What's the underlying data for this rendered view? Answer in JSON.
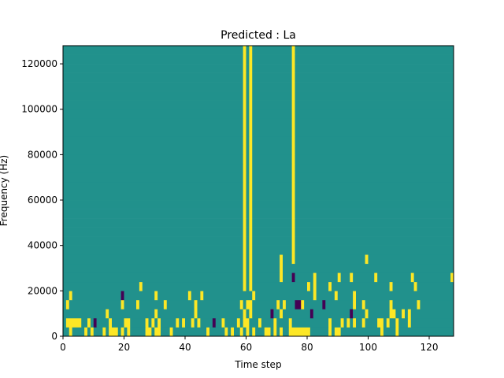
{
  "chart_data": {
    "type": "heatmap",
    "title": "Predicted : La",
    "xlabel": "Time step",
    "ylabel": "Frequency (Hz)",
    "xlim": [
      0,
      128
    ],
    "ylim": [
      0,
      128000
    ],
    "x_ticks": [
      0,
      20,
      40,
      60,
      80,
      100,
      120
    ],
    "y_ticks": [
      0,
      20000,
      40000,
      60000,
      80000,
      100000,
      120000
    ],
    "x_tick_labels": [
      "0",
      "20",
      "40",
      "60",
      "80",
      "100",
      "120"
    ],
    "y_tick_labels": [
      "0",
      "20000",
      "40000",
      "60000",
      "80000",
      "100000",
      "120000"
    ],
    "rows": 32,
    "cols": 128,
    "value_levels": [
      0,
      1,
      2
    ],
    "colormap": {
      "0": "#440154",
      "1": "#21918c",
      "2": "#fde725"
    },
    "grid": false,
    "legend": "none",
    "note": "cell values 0=low (purple), 1=mid (teal), 2=high (yellow); row 0 is the lowest frequency bin",
    "cells": [
      "1121111212111212221212111112212211121111111111121111121211212121112212121122222221111112122111111111111121111211111111111111111111",
      "1222221121011112111122111112121211111212112121111011211112122111211112111121111111111112111212121121111221211211121111111111111111",
      "1111111111111121111111111111112111111111111211111111111111121211111101121111111110111111111111011112111111122112121111111111111111",
      "1211111111111111111211112111111112111111111211111111111111212211111111212111002111111011111111121121111111121111111121111111111111",
      "1121111111111111111011111111112111111111121112111111111111111121111111111111111111211111121111121111111111111111111111111111111111",
      "1111111111111111111111111211111111111111111111111111111111121211111111111111111121211112111111111111111111121111111211111111111111",
      "1111111111111111111111111111111111111111111111111111111111121211111111121110111111211111112111211111112111111111112111111111111211",
      "1111111111111111111111111111111111111111111111111111111111121211111111121111111111111111111111111111111111111111111111111111111111",
      "1111111111111111111111111111111111111111111111111111111111121211111111121112111111111111111111111112111111111111111111111111111121",
      "1111111111111111111111111111111111111111111111111111111111121211111111111112111111111111111111111111111111111111111111111111111111",
      "1111111111111111111111111111111111111111111111111111111111121211111111111112111111111111111111111111111111111111111111111111111111",
      "1111111111111111111111111111111111111111111111111111111111121211111111111112111111111111111111111111111111111111111111111111111111",
      "1111111111111111111111111111111111111111111111111111111111121211111111111112111111111111111111111111111111111111111111111111111111",
      "1111111111111111111111111111111111111111111111111111111111121211111111111112111111111111111111111111111111111111111111111111111111",
      "1111111111111111111111111111111111111111111111111111111111121211111111111112111111111111111111111111111111111111111111111111111111",
      "1111111111111111111111111111111111111111111111111111111111121211111111111112111111111111111111111111111111111111111111111111111111",
      "1111111111111111111111111111111111111111111111111111111111121211111111111112111111111111111111111111111111111111111111111111111111",
      "1111111111111111111111111111111111111111111111111111111111121211111111111112111111111111111111111111111111111111111111111111111111",
      "1111111111111111111111111111111111111111111111111111111111121211111111111112111111111111111111111111111111111111111111111111111111",
      "1111111111111111111111111111111111111111111111111111111111121211111111111112111111111111111111111111111111111111111111111111111111",
      "1111111111111111111111111111111111111111111111111111111111121211111111111112111111111111111111111111111111111111111111111111111111",
      "1111111111111111111111111111111111111111111111111111111111121211111111111112111111111111111111111111111111111111111111111111111111",
      "1111111111111111111111111111111111111111111111111111111111121211111111111112111111111111111111111111111111111111111111111111111111",
      "1111111111111111111111111111111111111111111111111111111111121211111111111112111111111111111111111111111111111111111111111111111111",
      "1111111111111111111111111111111111111111111111111111111111121211111111111112111111111111111111111111111111111111111111111111111111",
      "1111111111111111111111111111111111111111111111111111111111121211111111111112111111111111111111111111111111111111111111111111111111",
      "1111111111111111111111111111111111111111111111111111111111121211111111111112111111111111111111111111111111111111111111111111111111",
      "1111111111111111111111111111111111111111111111111111111111121211111111111112111111111111111111111111111111111111111111111111111111",
      "1111111111111111111111111111111111111111111111111111111111121211111111111112111111111111111111111111111111111111111111111111111111",
      "1111111111111111111111111111111111111111111111111111111111121211111111111112111111111111111111111111111111111111111111111111111111",
      "1111111111111111111111111111111111111111111111111111111111121211111111111112111111111111111111111111111111111111111111111111111111",
      "1111111111111111111111111111111111111111111111111111111111121211111111111112111111111111111111111111111111111111111111111111111111"
    ]
  }
}
